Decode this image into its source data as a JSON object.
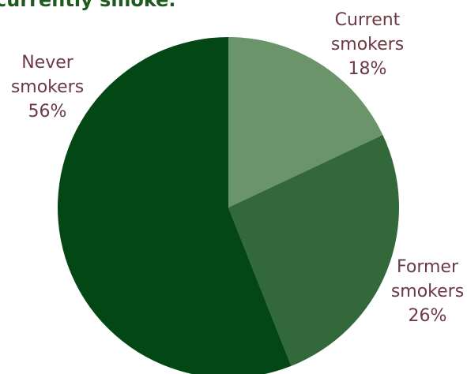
{
  "chart_data": {
    "type": "pie",
    "title": "currently smoke.",
    "slices": [
      {
        "label_lines": [
          "Current",
          "smokers",
          "18%"
        ],
        "value": 18,
        "color": "#6b946b"
      },
      {
        "label_lines": [
          "Former",
          "smokers",
          "26%"
        ],
        "value": 26,
        "color": "#32683a"
      },
      {
        "label_lines": [
          "Never",
          "smokers",
          "56%"
        ],
        "value": 56,
        "color": "#034814"
      }
    ],
    "start_angle_deg": 0,
    "direction": "clockwise"
  }
}
